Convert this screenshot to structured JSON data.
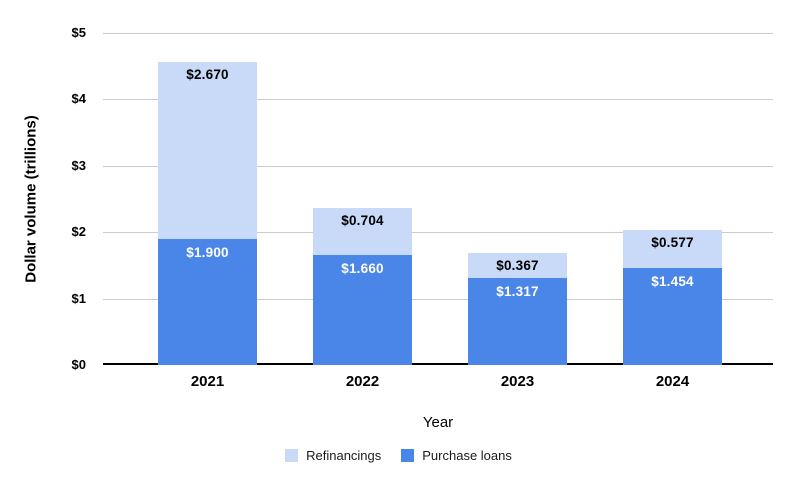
{
  "chart_data": {
    "type": "bar",
    "stacked": true,
    "categories": [
      "2021",
      "2022",
      "2023",
      "2024"
    ],
    "series": [
      {
        "name": "Purchase loans",
        "color": "#4a86e8",
        "label_color": "#ffffff",
        "values": [
          1.9,
          1.66,
          1.317,
          1.454
        ],
        "labels": [
          "$1.900",
          "$1.660",
          "$1.317",
          "$1.454"
        ]
      },
      {
        "name": "Refinancings",
        "color": "#c9daf8",
        "label_color": "#000000",
        "values": [
          2.67,
          0.704,
          0.367,
          0.577
        ],
        "labels": [
          "$2.670",
          "$0.704",
          "$0.367",
          "$0.577"
        ]
      }
    ],
    "totals": [
      4.57,
      2.364,
      1.684,
      2.031
    ],
    "xlabel": "Year",
    "ylabel": "Dollar volume (trillions)",
    "ylim": [
      0,
      5
    ],
    "yticks": [
      {
        "value": 0,
        "label": "$0"
      },
      {
        "value": 1,
        "label": "$1"
      },
      {
        "value": 2,
        "label": "$2"
      },
      {
        "value": 3,
        "label": "$3"
      },
      {
        "value": 4,
        "label": "$4"
      },
      {
        "value": 5,
        "label": "$5"
      }
    ],
    "grid": true,
    "legend_position": "bottom",
    "legend": [
      {
        "label": "Refinancings",
        "color": "#c9daf8"
      },
      {
        "label": "Purchase loans",
        "color": "#4a86e8"
      }
    ]
  },
  "colors": {
    "background": "#ffffff",
    "gridline": "#cccccc",
    "axis_line": "#000000",
    "refinancings": "#c9daf8",
    "purchase_loans": "#4a86e8"
  }
}
